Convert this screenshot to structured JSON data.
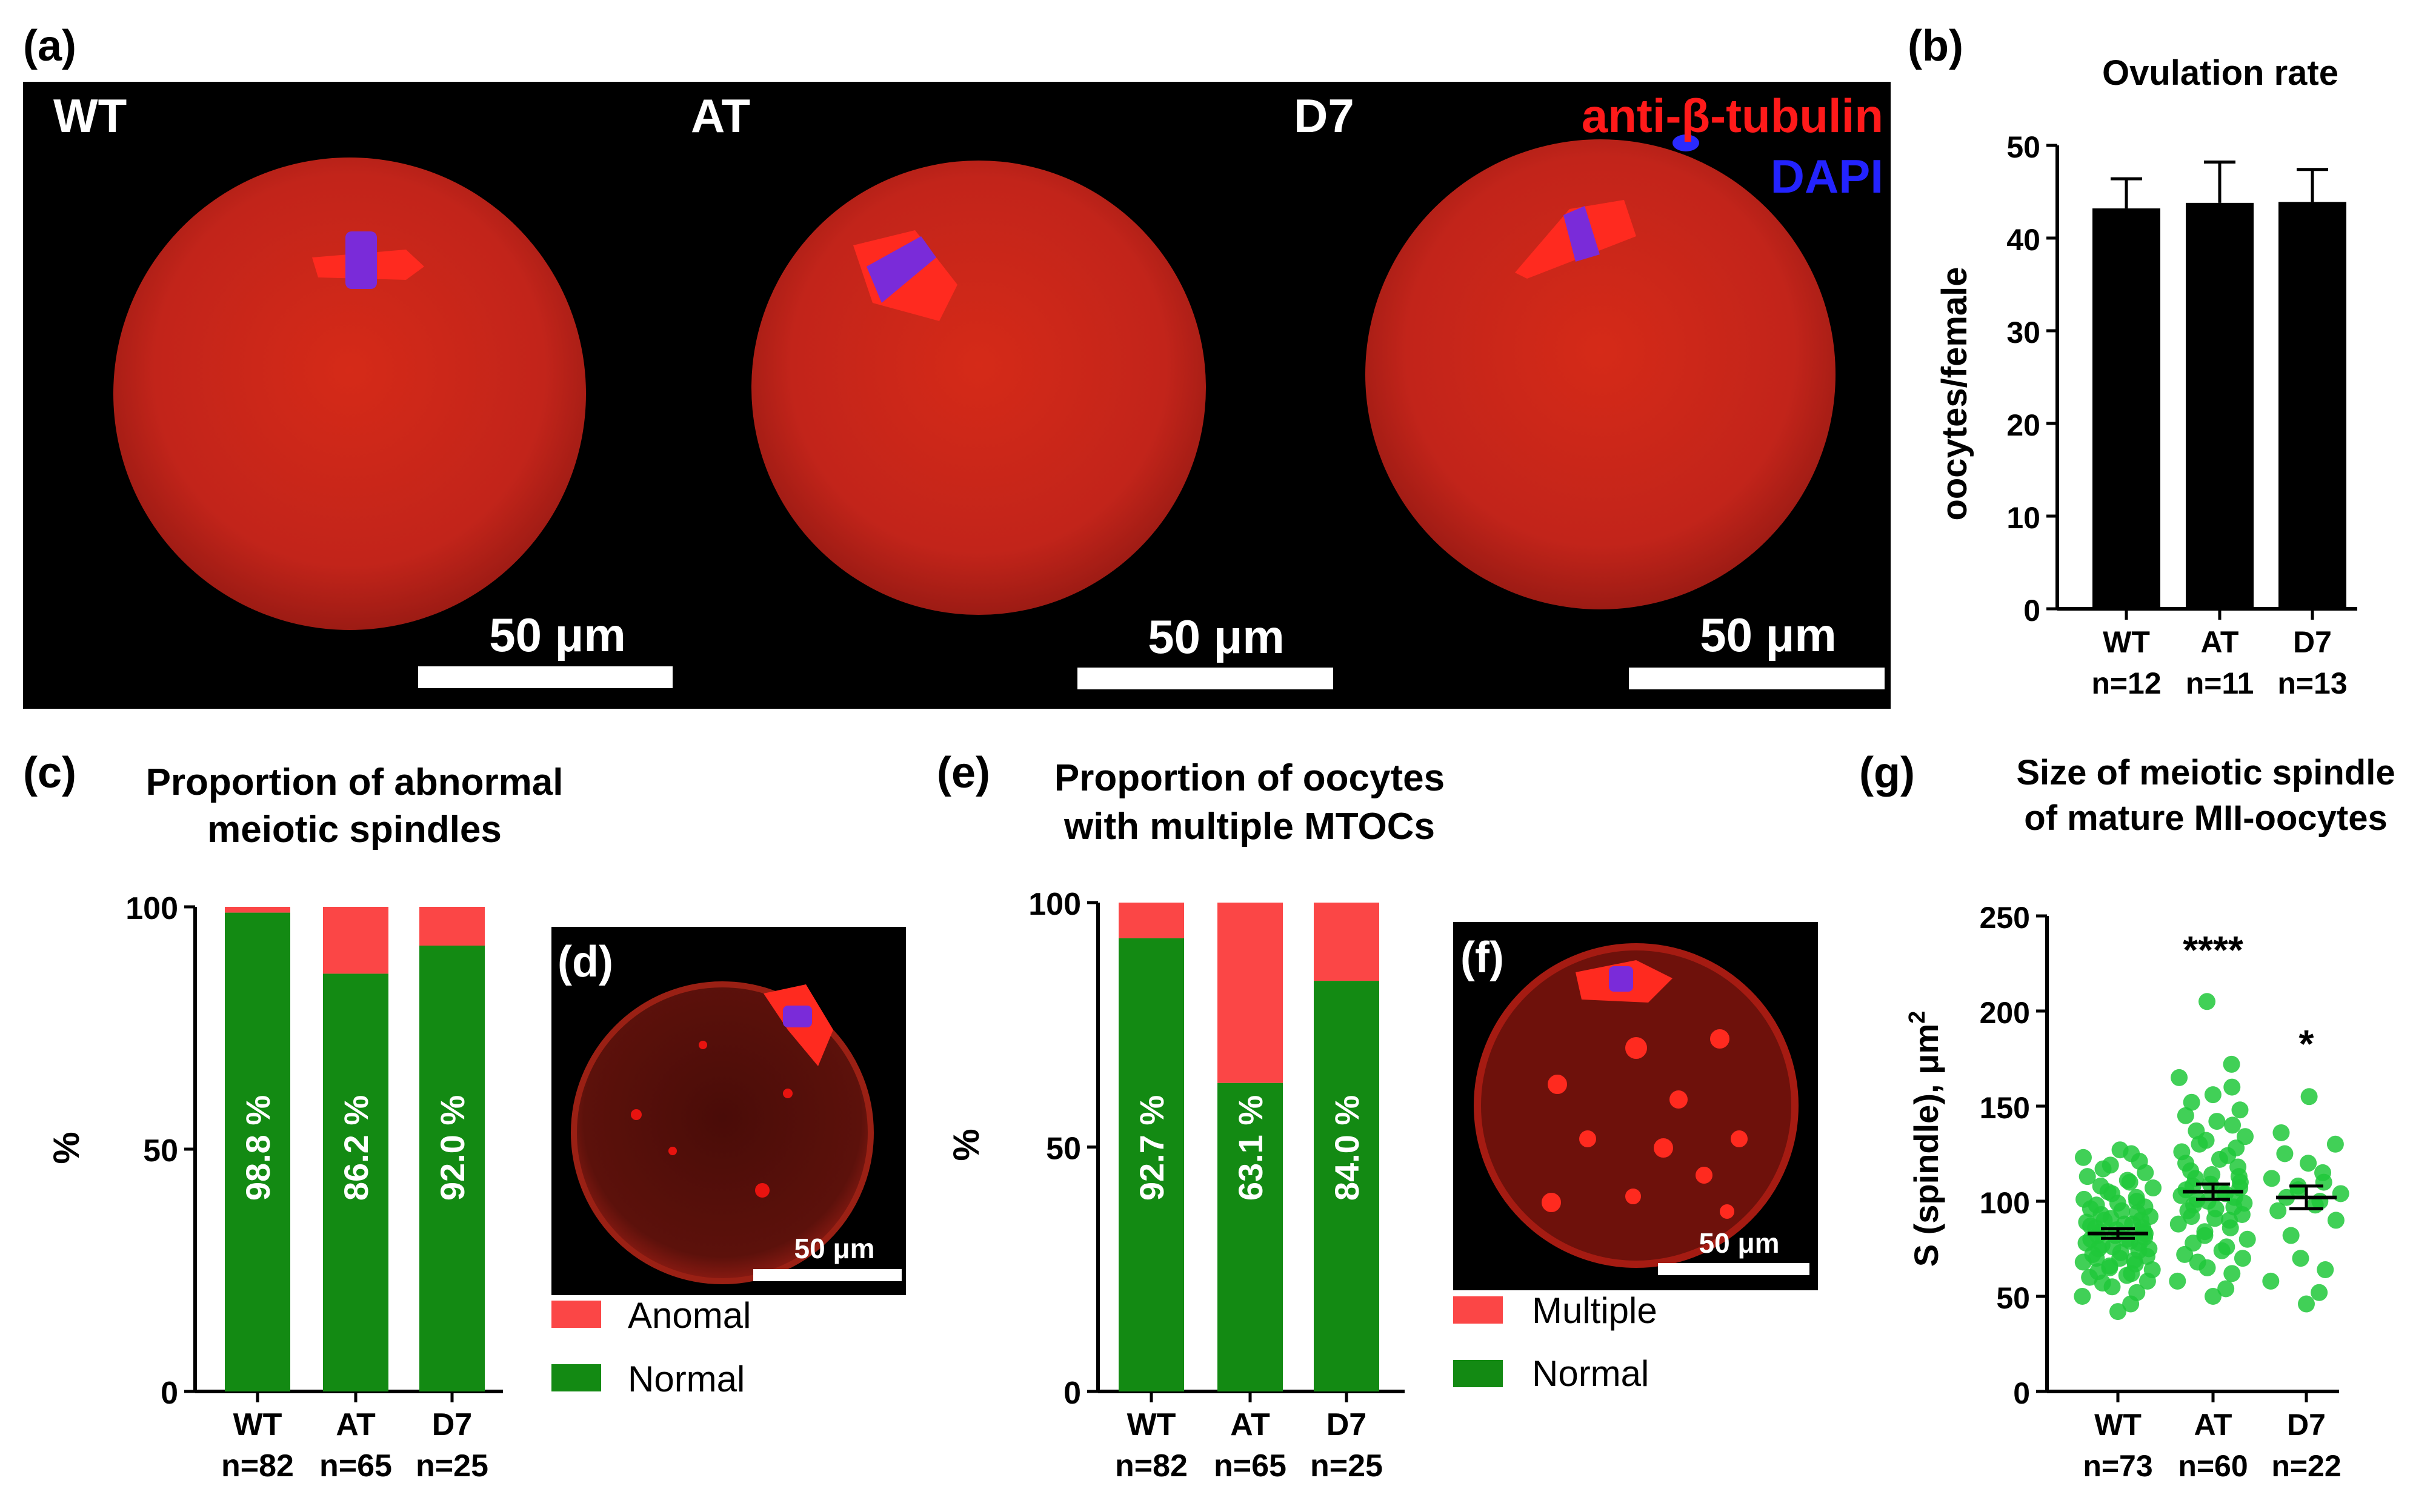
{
  "panels": {
    "a": "(a)",
    "b": "(b)",
    "c": "(c)",
    "d": "(d)",
    "e": "(e)",
    "f": "(f)",
    "g": "(g)"
  },
  "micrographs": {
    "groups": [
      "WT",
      "AT",
      "D7"
    ],
    "legend": [
      "anti-β-tubulin",
      "DAPI"
    ],
    "scale_label": "50 μm"
  },
  "colors": {
    "bar": "#000000",
    "normal": "#138a13",
    "anomal": "#fb4646",
    "tubulin": "#e8130f",
    "dapi": "#1d21ff",
    "dot": "#20c83a"
  },
  "chart_data": [
    {
      "type": "bar",
      "title": "Ovulation rate",
      "categories": [
        "WT",
        "AT",
        "D7"
      ],
      "sublabels": [
        "n=12",
        "n=11",
        "n=13"
      ],
      "values": [
        43.2,
        43.8,
        43.9
      ],
      "errors": [
        3.2,
        4.4,
        3.5
      ],
      "ylabel": "oocytes/female",
      "ylim": [
        0,
        50
      ],
      "yticks": [
        0,
        10,
        20,
        30,
        40,
        50
      ]
    },
    {
      "type": "bar",
      "stacked": true,
      "title": [
        "Proportion of abnormal",
        "meiotic spindles"
      ],
      "categories": [
        "WT",
        "AT",
        "D7"
      ],
      "sublabels": [
        "n=82",
        "n=65",
        "n=25"
      ],
      "series": [
        {
          "name": "Normal",
          "values": [
            98.8,
            86.2,
            92.0
          ]
        },
        {
          "name": "Anomal",
          "values": [
            1.2,
            13.8,
            8.0
          ]
        }
      ],
      "labels": [
        "98.8 %",
        "86.2 %",
        "92.0 %"
      ],
      "ylabel": "%",
      "ylim": [
        0,
        100
      ],
      "yticks": [
        0,
        50,
        100
      ],
      "legend": [
        "Anomal",
        "Normal"
      ]
    },
    {
      "type": "bar",
      "stacked": true,
      "title": [
        "Proportion of oocytes",
        "with multiple MTOCs"
      ],
      "categories": [
        "WT",
        "AT",
        "D7"
      ],
      "sublabels": [
        "n=82",
        "n=65",
        "n=25"
      ],
      "series": [
        {
          "name": "Normal",
          "values": [
            92.7,
            63.1,
            84.0
          ]
        },
        {
          "name": "Multiple",
          "values": [
            7.3,
            36.9,
            16.0
          ]
        }
      ],
      "labels": [
        "92.7 %",
        "63.1 %",
        "84.0 %"
      ],
      "ylabel": "%",
      "ylim": [
        0,
        100
      ],
      "yticks": [
        0,
        50,
        100
      ],
      "legend": [
        "Multiple",
        "Normal"
      ]
    },
    {
      "type": "scatter",
      "title": [
        "Size of meiotic spindle",
        "of mature MII-oocytes"
      ],
      "categories": [
        "WT",
        "AT",
        "D7"
      ],
      "sublabels": [
        "n=73",
        "n=60",
        "n=22"
      ],
      "ylabel": "S (spindle), μm",
      "ylabel_sup": "2",
      "ylim": [
        0,
        250
      ],
      "yticks": [
        0,
        50,
        100,
        150,
        200,
        250
      ],
      "means": [
        83,
        105,
        102
      ],
      "sem": [
        2.5,
        4,
        6
      ],
      "significance": [
        "",
        "****",
        "*"
      ],
      "points": [
        [
          42,
          46,
          50,
          52,
          55,
          57,
          58,
          60,
          61,
          62,
          63,
          64,
          65,
          66,
          67,
          68,
          69,
          70,
          70,
          71,
          72,
          73,
          74,
          75,
          75,
          76,
          77,
          78,
          78,
          79,
          80,
          80,
          81,
          82,
          82,
          83,
          84,
          84,
          85,
          86,
          86,
          87,
          88,
          88,
          89,
          90,
          90,
          91,
          92,
          93,
          94,
          95,
          96,
          97,
          98,
          99,
          100,
          101,
          102,
          104,
          105,
          107,
          108,
          110,
          111,
          113,
          115,
          117,
          119,
          121,
          123,
          125,
          127
        ],
        [
          50,
          54,
          58,
          62,
          65,
          68,
          70,
          72,
          74,
          76,
          78,
          80,
          82,
          84,
          86,
          88,
          90,
          91,
          92,
          93,
          95,
          96,
          97,
          98,
          99,
          100,
          101,
          102,
          103,
          104,
          105,
          106,
          107,
          108,
          109,
          110,
          112,
          113,
          114,
          116,
          118,
          120,
          122,
          124,
          126,
          128,
          130,
          132,
          134,
          137,
          140,
          142,
          145,
          148,
          152,
          156,
          160,
          165,
          172,
          205
        ],
        [
          46,
          52,
          58,
          64,
          70,
          82,
          90,
          95,
          98,
          100,
          102,
          104,
          106,
          108,
          110,
          112,
          115,
          120,
          125,
          130,
          136,
          155
        ]
      ]
    }
  ]
}
